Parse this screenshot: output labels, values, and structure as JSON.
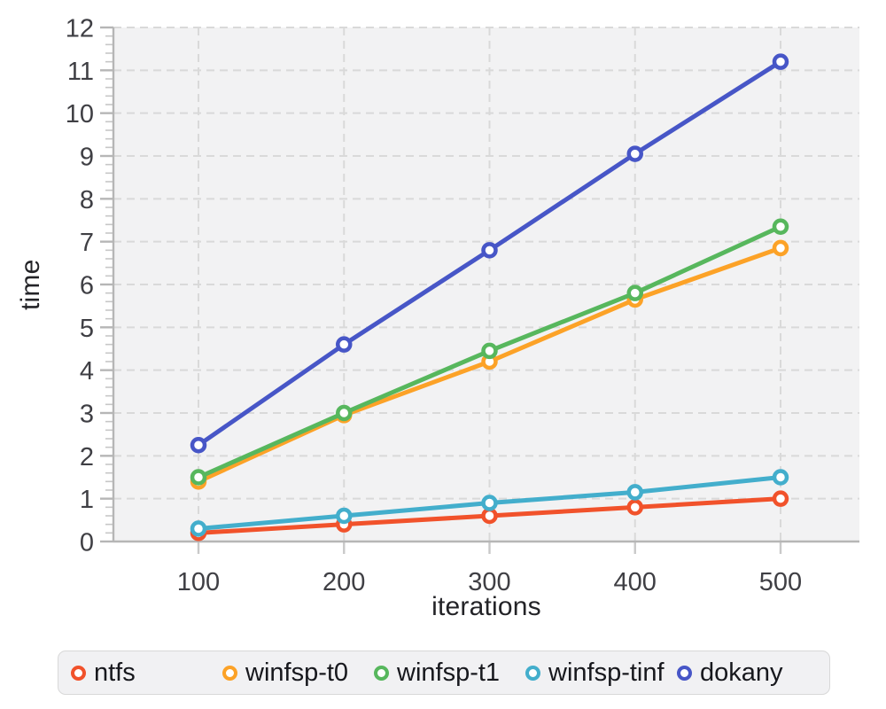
{
  "chart_data": {
    "type": "line",
    "title": "",
    "xlabel": "iterations",
    "ylabel": "time",
    "x": [
      100,
      200,
      300,
      400,
      500
    ],
    "x_ticks": [
      100,
      200,
      300,
      400,
      500
    ],
    "y_ticks": [
      0,
      1,
      2,
      3,
      4,
      5,
      6,
      7,
      8,
      9,
      10,
      11,
      12
    ],
    "ylim": [
      0,
      12
    ],
    "y_minor_tick_step": 0.2,
    "grid": "dashed",
    "legend_position": "bottom",
    "marker": "open-circle",
    "series": [
      {
        "name": "ntfs",
        "color": "#F1522B",
        "values": [
          0.2,
          0.4,
          0.6,
          0.8,
          1.0
        ]
      },
      {
        "name": "winfsp-t0",
        "color": "#FCA227",
        "values": [
          1.4,
          2.95,
          4.2,
          5.65,
          6.85
        ]
      },
      {
        "name": "winfsp-t1",
        "color": "#57B75D",
        "values": [
          1.5,
          3.0,
          4.45,
          5.8,
          7.35
        ]
      },
      {
        "name": "winfsp-tinf",
        "color": "#43AECC",
        "values": [
          0.3,
          0.6,
          0.9,
          1.15,
          1.5
        ]
      },
      {
        "name": "dokany",
        "color": "#4756C7",
        "values": [
          2.25,
          4.6,
          6.8,
          9.05,
          11.2
        ]
      }
    ]
  },
  "colors": {
    "page_bg": "#ffffff",
    "plot_bg": "#f2f2f3",
    "grid": "#d9d9d9",
    "axis": "#b6b6b6",
    "major_tick": "#b6b6b6",
    "minor_tick": "#c7c7c7",
    "x_tick": "#c9c9c9",
    "tick_label": "#3f3f44",
    "axis_title": "#232327",
    "legend_bg": "#f1f1f3",
    "legend_border": "#d8d8d8",
    "legend_text": "#17181d"
  }
}
